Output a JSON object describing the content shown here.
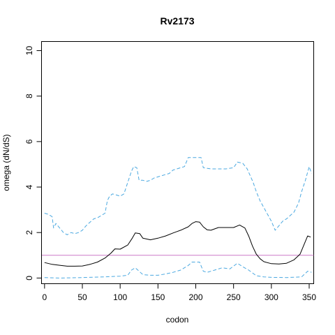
{
  "chart_data": {
    "type": "line",
    "title": "Rv2173",
    "xlabel": "codon",
    "ylabel": "omega (dN/dS)",
    "xlim": [
      -4,
      356
    ],
    "ylim": [
      -0.25,
      10.4
    ],
    "x_ticks": [
      0,
      50,
      100,
      150,
      200,
      250,
      300,
      350
    ],
    "y_ticks": [
      0,
      2,
      4,
      6,
      8,
      10
    ],
    "grid": false,
    "reference_line": {
      "y": 1,
      "color": "#cc79c8"
    },
    "series": [
      {
        "role": "estimate",
        "color": "#000000",
        "style": "solid",
        "points": [
          [
            0,
            0.68
          ],
          [
            10,
            0.6
          ],
          [
            20,
            0.56
          ],
          [
            30,
            0.52
          ],
          [
            40,
            0.52
          ],
          [
            50,
            0.53
          ],
          [
            60,
            0.6
          ],
          [
            70,
            0.7
          ],
          [
            80,
            0.88
          ],
          [
            88,
            1.1
          ],
          [
            93,
            1.28
          ],
          [
            100,
            1.27
          ],
          [
            110,
            1.45
          ],
          [
            116,
            1.75
          ],
          [
            120,
            1.98
          ],
          [
            126,
            1.95
          ],
          [
            130,
            1.75
          ],
          [
            140,
            1.68
          ],
          [
            150,
            1.75
          ],
          [
            160,
            1.85
          ],
          [
            170,
            1.98
          ],
          [
            180,
            2.1
          ],
          [
            190,
            2.25
          ],
          [
            195,
            2.4
          ],
          [
            200,
            2.48
          ],
          [
            205,
            2.46
          ],
          [
            210,
            2.25
          ],
          [
            215,
            2.12
          ],
          [
            220,
            2.1
          ],
          [
            230,
            2.22
          ],
          [
            240,
            2.22
          ],
          [
            250,
            2.22
          ],
          [
            258,
            2.33
          ],
          [
            265,
            2.2
          ],
          [
            270,
            1.85
          ],
          [
            275,
            1.4
          ],
          [
            280,
            1.05
          ],
          [
            285,
            0.85
          ],
          [
            290,
            0.72
          ],
          [
            300,
            0.63
          ],
          [
            310,
            0.62
          ],
          [
            320,
            0.65
          ],
          [
            330,
            0.8
          ],
          [
            338,
            1.05
          ],
          [
            343,
            1.45
          ],
          [
            348,
            1.85
          ],
          [
            352,
            1.8
          ]
        ]
      },
      {
        "role": "upper",
        "color": "#4aa8e0",
        "style": "dashed",
        "points": [
          [
            0,
            2.85
          ],
          [
            5,
            2.8
          ],
          [
            10,
            2.7
          ],
          [
            12,
            2.2
          ],
          [
            15,
            2.4
          ],
          [
            20,
            2.2
          ],
          [
            25,
            2.0
          ],
          [
            30,
            1.9
          ],
          [
            35,
            2.0
          ],
          [
            40,
            1.95
          ],
          [
            45,
            2.0
          ],
          [
            50,
            2.1
          ],
          [
            55,
            2.3
          ],
          [
            60,
            2.45
          ],
          [
            65,
            2.6
          ],
          [
            70,
            2.65
          ],
          [
            75,
            2.75
          ],
          [
            80,
            2.85
          ],
          [
            83,
            3.4
          ],
          [
            86,
            3.6
          ],
          [
            90,
            3.7
          ],
          [
            95,
            3.65
          ],
          [
            100,
            3.6
          ],
          [
            105,
            3.7
          ],
          [
            110,
            4.2
          ],
          [
            115,
            4.7
          ],
          [
            118,
            4.9
          ],
          [
            122,
            4.85
          ],
          [
            125,
            4.3
          ],
          [
            130,
            4.3
          ],
          [
            135,
            4.25
          ],
          [
            140,
            4.3
          ],
          [
            145,
            4.4
          ],
          [
            150,
            4.45
          ],
          [
            155,
            4.5
          ],
          [
            160,
            4.55
          ],
          [
            165,
            4.6
          ],
          [
            170,
            4.75
          ],
          [
            175,
            4.8
          ],
          [
            180,
            4.85
          ],
          [
            185,
            4.9
          ],
          [
            190,
            5.3
          ],
          [
            200,
            5.3
          ],
          [
            207,
            5.3
          ],
          [
            210,
            4.85
          ],
          [
            220,
            4.8
          ],
          [
            230,
            4.8
          ],
          [
            240,
            4.8
          ],
          [
            250,
            4.85
          ],
          [
            255,
            5.1
          ],
          [
            262,
            5.05
          ],
          [
            268,
            4.8
          ],
          [
            272,
            4.5
          ],
          [
            276,
            4.2
          ],
          [
            280,
            3.8
          ],
          [
            285,
            3.4
          ],
          [
            290,
            3.1
          ],
          [
            295,
            2.8
          ],
          [
            300,
            2.5
          ],
          [
            305,
            2.1
          ],
          [
            310,
            2.3
          ],
          [
            315,
            2.5
          ],
          [
            320,
            2.6
          ],
          [
            325,
            2.75
          ],
          [
            330,
            2.9
          ],
          [
            336,
            3.3
          ],
          [
            340,
            3.8
          ],
          [
            345,
            4.3
          ],
          [
            350,
            4.9
          ],
          [
            353,
            4.6
          ]
        ]
      },
      {
        "role": "lower",
        "color": "#4aa8e0",
        "style": "dashed",
        "points": [
          [
            0,
            0.02
          ],
          [
            20,
            0.0
          ],
          [
            50,
            0.02
          ],
          [
            80,
            0.05
          ],
          [
            100,
            0.08
          ],
          [
            110,
            0.12
          ],
          [
            115,
            0.35
          ],
          [
            120,
            0.45
          ],
          [
            125,
            0.3
          ],
          [
            130,
            0.15
          ],
          [
            140,
            0.12
          ],
          [
            150,
            0.12
          ],
          [
            160,
            0.18
          ],
          [
            170,
            0.25
          ],
          [
            180,
            0.35
          ],
          [
            190,
            0.55
          ],
          [
            195,
            0.7
          ],
          [
            205,
            0.7
          ],
          [
            210,
            0.3
          ],
          [
            215,
            0.25
          ],
          [
            225,
            0.35
          ],
          [
            235,
            0.45
          ],
          [
            245,
            0.4
          ],
          [
            255,
            0.65
          ],
          [
            262,
            0.5
          ],
          [
            270,
            0.35
          ],
          [
            280,
            0.1
          ],
          [
            290,
            0.05
          ],
          [
            300,
            0.03
          ],
          [
            320,
            0.02
          ],
          [
            340,
            0.05
          ],
          [
            348,
            0.3
          ],
          [
            353,
            0.25
          ]
        ]
      }
    ]
  }
}
